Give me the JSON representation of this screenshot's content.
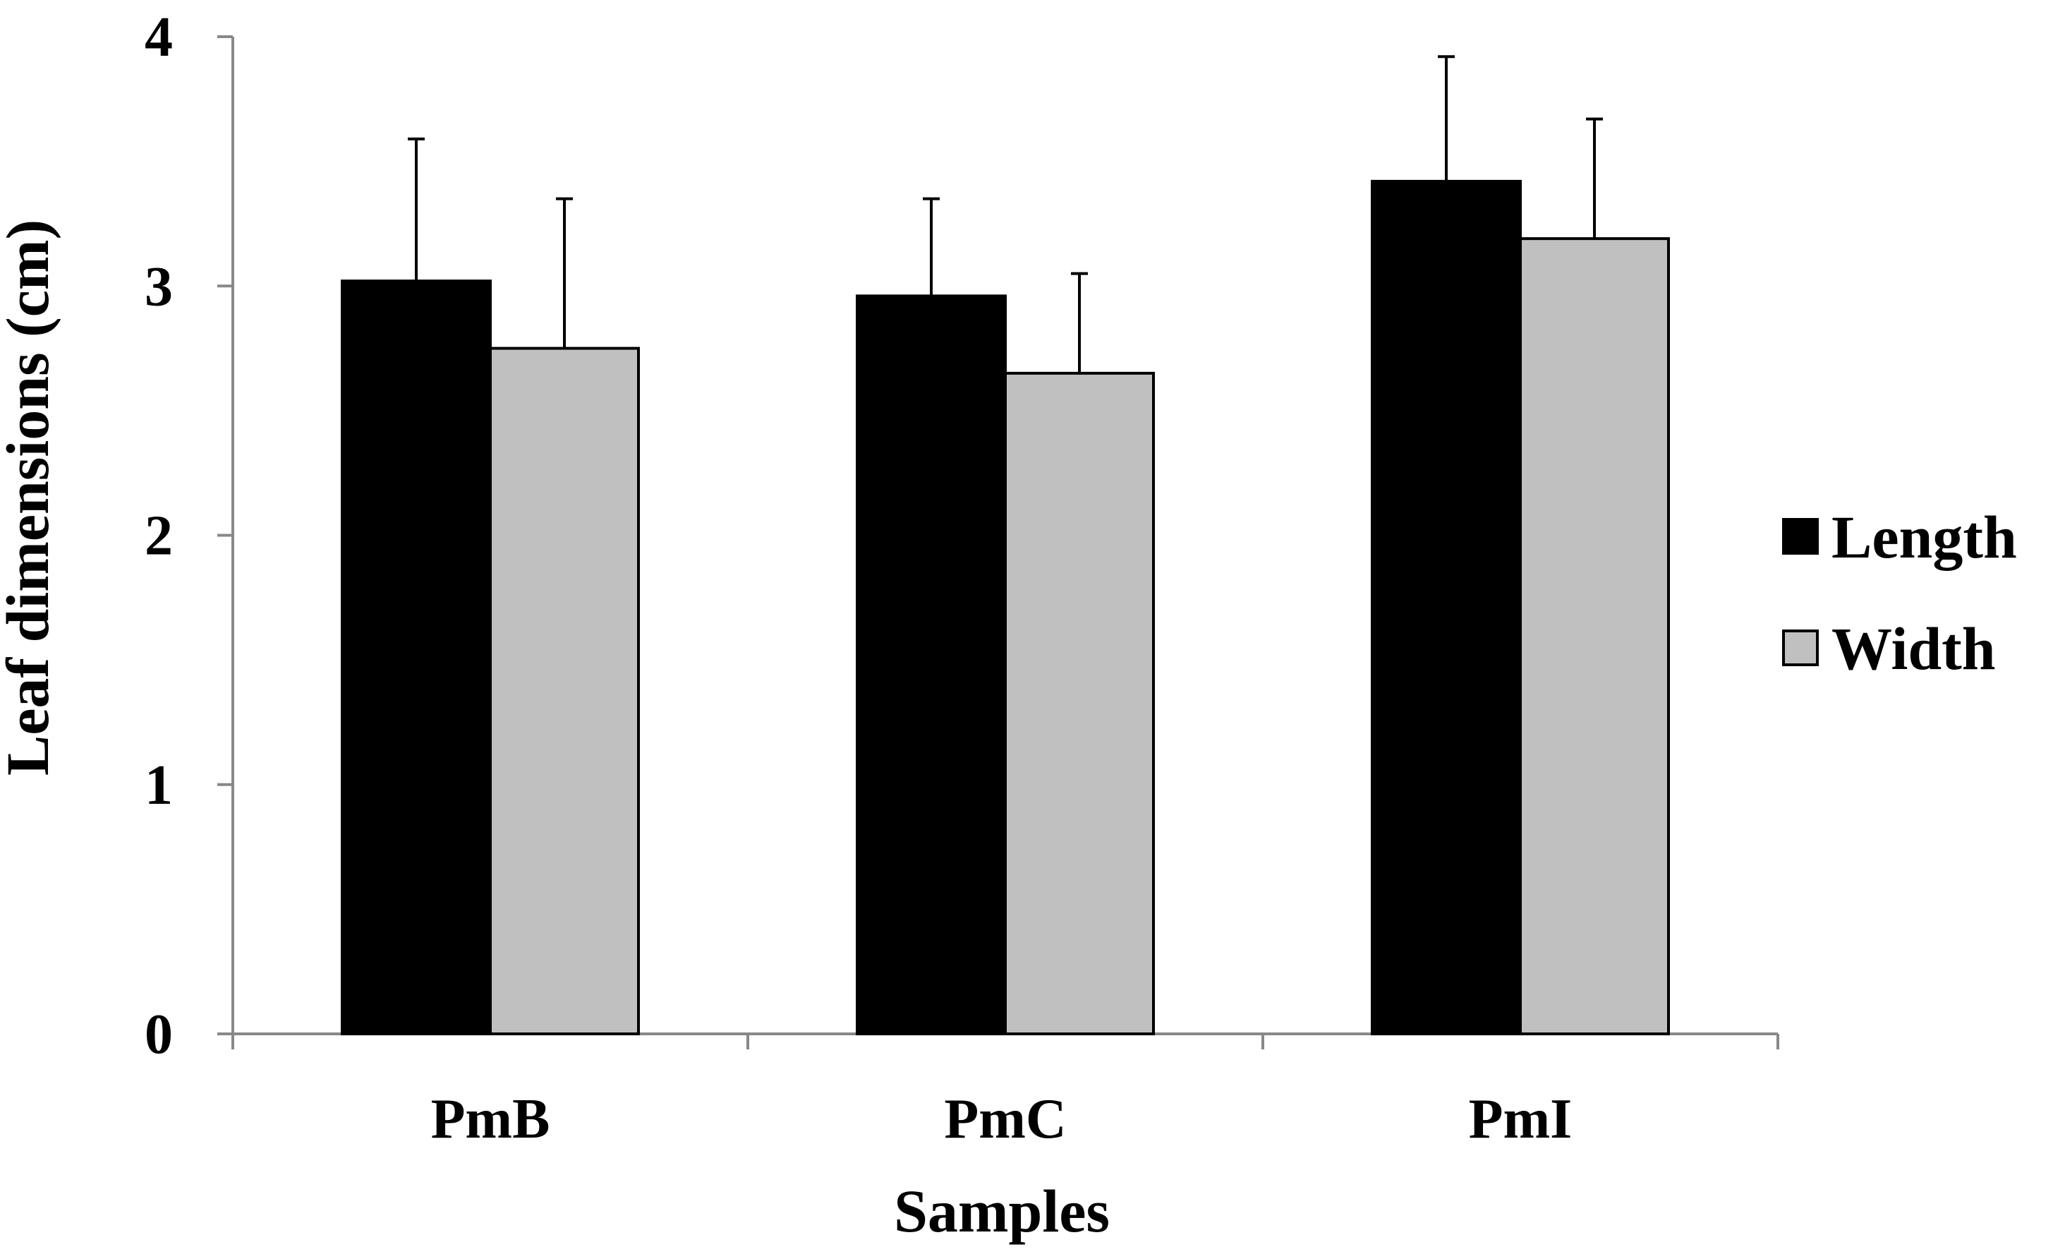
{
  "chart_data": {
    "type": "bar",
    "title": "",
    "xlabel": "Samples",
    "ylabel": "Leaf dimensions (cm)",
    "categories": [
      "PmB",
      "PmC",
      "PmI"
    ],
    "ylim": [
      0,
      4
    ],
    "yticks": [
      "0",
      "1",
      "2",
      "3",
      "4"
    ],
    "grid": false,
    "legend_position": "right",
    "series": [
      {
        "name": "Length",
        "values": [
          3.02,
          2.96,
          3.42
        ],
        "errors": [
          0.57,
          0.39,
          0.5
        ],
        "color": "#000000"
      },
      {
        "name": "Width",
        "values": [
          2.75,
          2.65,
          3.19
        ],
        "errors": [
          0.6,
          0.4,
          0.48
        ],
        "color": "#c0c0c0"
      }
    ]
  }
}
